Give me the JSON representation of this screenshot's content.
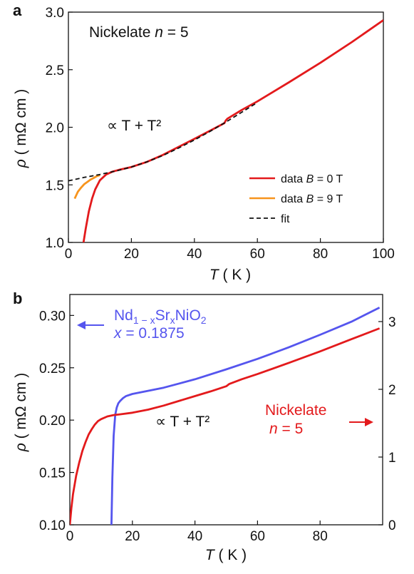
{
  "chart_data": [
    {
      "panel_label": "a",
      "type": "line",
      "title": "Nickelate n = 5",
      "title_parts": {
        "prefix": "Nickelate ",
        "var": "n",
        "suffix": " = 5"
      },
      "xlabel": {
        "var": "T",
        "unit": " ( K )"
      },
      "ylabel": {
        "var": "ρ",
        "unit": " ( mΩ cm )"
      },
      "xlim": [
        0,
        100
      ],
      "ylim": [
        1.0,
        3.0
      ],
      "xticks": [
        "0",
        "20",
        "40",
        "60",
        "80",
        "100"
      ],
      "xtick_values": [
        0,
        20,
        40,
        60,
        80,
        100
      ],
      "yticks": [
        "1.0",
        "1.5",
        "2.0",
        "2.5",
        "3.0"
      ],
      "ytick_values": [
        1.0,
        1.5,
        2.0,
        2.5,
        3.0
      ],
      "annotation": "∝ T + T²",
      "legend_position": "bottom-right",
      "series": [
        {
          "name": "data B = 0 T",
          "legend": {
            "prefix": "data ",
            "var": "B",
            "suffix": " = 0 T"
          },
          "color": "#e31a1c",
          "style": "solid",
          "x": [
            4.8,
            5.5,
            6.5,
            7.5,
            8.5,
            10,
            12,
            14,
            16,
            20,
            25,
            30,
            35,
            40,
            45,
            49.5,
            50,
            50.5,
            55,
            60,
            70,
            80,
            90,
            100
          ],
          "y": [
            1.0,
            1.12,
            1.27,
            1.38,
            1.46,
            1.54,
            1.59,
            1.615,
            1.63,
            1.655,
            1.7,
            1.76,
            1.83,
            1.9,
            1.97,
            2.035,
            2.06,
            2.075,
            2.15,
            2.225,
            2.39,
            2.56,
            2.74,
            2.93
          ]
        },
        {
          "name": "data B = 9 T",
          "legend": {
            "prefix": "data ",
            "var": "B",
            "suffix": " = 9 T"
          },
          "color": "#f7941d",
          "style": "solid",
          "x": [
            2.0,
            2.5,
            3.0,
            4.0,
            5.0,
            6.0,
            7.0,
            8.0,
            9.0,
            10.0
          ],
          "y": [
            1.38,
            1.41,
            1.44,
            1.475,
            1.505,
            1.525,
            1.545,
            1.56,
            1.575,
            1.585
          ]
        },
        {
          "name": "fit",
          "legend": {
            "prefix": "fit",
            "var": "",
            "suffix": ""
          },
          "color": "#111111",
          "style": "dashed",
          "x": [
            0,
            5,
            10,
            15,
            20,
            25,
            30,
            35,
            40,
            45,
            50,
            55,
            60
          ],
          "y": [
            1.535,
            1.565,
            1.59,
            1.62,
            1.655,
            1.7,
            1.755,
            1.82,
            1.89,
            1.965,
            2.045,
            2.13,
            2.215
          ]
        }
      ]
    },
    {
      "panel_label": "b",
      "type": "line",
      "xlabel": {
        "var": "T",
        "unit": " ( K )"
      },
      "ylabel_left": {
        "var": "ρ",
        "unit": " ( mΩ cm )"
      },
      "xlim": [
        0,
        100
      ],
      "ylim_left": [
        0.1,
        0.32
      ],
      "ylim_right": [
        0,
        3.4
      ],
      "xticks": [
        "0",
        "20",
        "40",
        "60",
        "80"
      ],
      "xtick_values": [
        0,
        20,
        40,
        60,
        80
      ],
      "yticks_left": [
        "0.10",
        "0.15",
        "0.20",
        "0.25",
        "0.30"
      ],
      "ytick_left_values": [
        0.1,
        0.15,
        0.2,
        0.25,
        0.3
      ],
      "yticks_right": [
        "0",
        "1",
        "2",
        "3"
      ],
      "ytick_right_values": [
        0,
        1,
        2,
        3
      ],
      "annotation": "∝ T + T²",
      "series": [
        {
          "name": "Nd1−xSrxNiO2 x = 0.1875",
          "label_line1": {
            "a": "Nd",
            "b": "1 − x",
            "c": "Sr",
            "d": "x",
            "e": "NiO",
            "f": "2"
          },
          "label_line2": {
            "var": "x",
            "suffix": " = 0.1875"
          },
          "color": "#5555ee",
          "axis": "left",
          "arrow": "left",
          "x": [
            13.3,
            13.6,
            14.0,
            14.5,
            15.0,
            15.5,
            16.0,
            17.0,
            18.0,
            20,
            25,
            30,
            35,
            40,
            50,
            60,
            70,
            80,
            90,
            99
          ],
          "y": [
            0.1,
            0.145,
            0.185,
            0.205,
            0.212,
            0.216,
            0.218,
            0.221,
            0.223,
            0.225,
            0.228,
            0.231,
            0.235,
            0.239,
            0.2485,
            0.2585,
            0.2695,
            0.2815,
            0.294,
            0.3075
          ]
        },
        {
          "name": "Nickelate n = 5",
          "label_line1": {
            "text": "Nickelate"
          },
          "label_line2": {
            "var": "n",
            "suffix": " = 5"
          },
          "color": "#e31a1c",
          "axis": "right",
          "arrow": "right",
          "x": [
            0,
            0.5,
            1,
            2,
            3,
            4,
            5,
            6,
            7,
            8,
            9,
            10,
            12,
            14,
            16,
            20,
            25,
            30,
            35,
            40,
            45,
            50,
            51,
            55,
            60,
            70,
            80,
            90,
            99
          ],
          "y": [
            0.0,
            0.25,
            0.45,
            0.72,
            0.92,
            1.09,
            1.22,
            1.33,
            1.41,
            1.48,
            1.53,
            1.56,
            1.6,
            1.62,
            1.63,
            1.655,
            1.7,
            1.76,
            1.83,
            1.9,
            1.97,
            2.045,
            2.08,
            2.15,
            2.225,
            2.39,
            2.56,
            2.74,
            2.9
          ]
        }
      ]
    }
  ]
}
